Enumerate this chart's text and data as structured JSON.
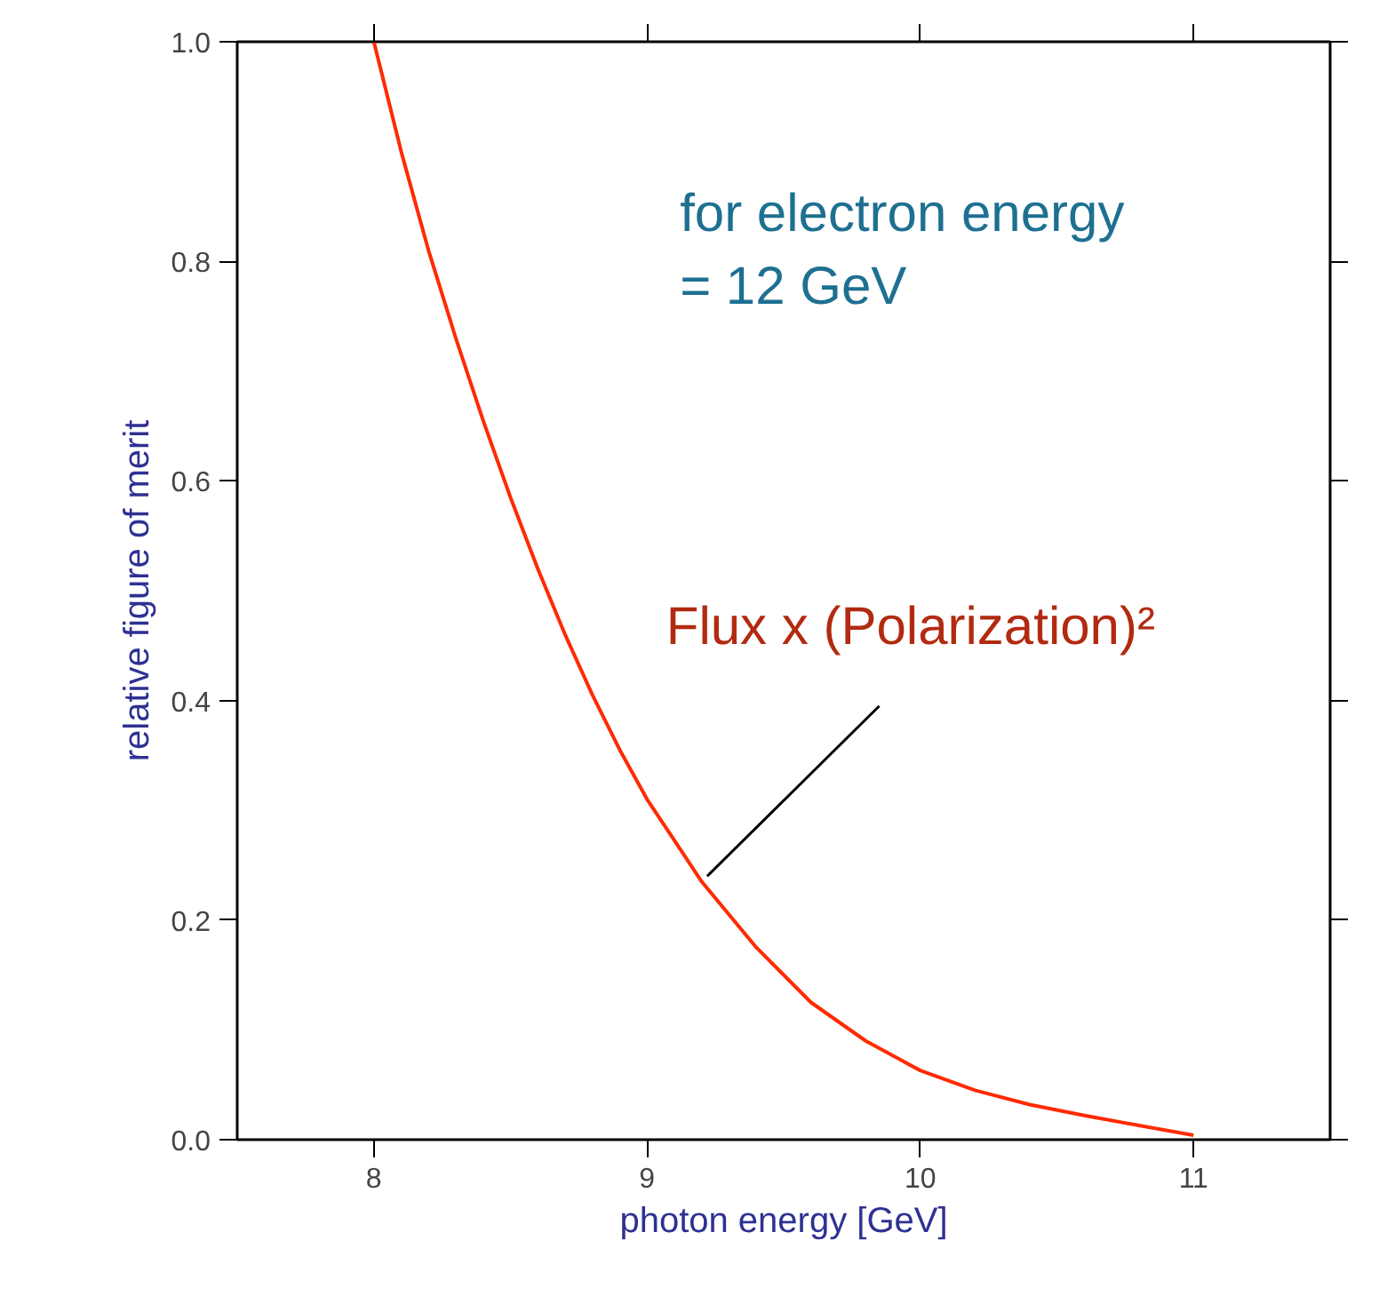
{
  "chart_data": {
    "type": "line",
    "xlabel": "photon energy [GeV]",
    "ylabel": "relative figure of merit",
    "x": [
      8.0,
      8.1,
      8.2,
      8.3,
      8.4,
      8.5,
      8.6,
      8.7,
      8.8,
      8.9,
      9.0,
      9.2,
      9.4,
      9.6,
      9.8,
      10.0,
      10.2,
      10.4,
      10.6,
      10.8,
      11.0
    ],
    "series": [
      {
        "color": "#ff2a00",
        "values": [
          1.0,
          0.9,
          0.81,
          0.73,
          0.655,
          0.585,
          0.52,
          0.46,
          0.405,
          0.355,
          0.31,
          0.235,
          0.175,
          0.125,
          0.09,
          0.063,
          0.045,
          0.032,
          0.022,
          0.013,
          0.004
        ]
      }
    ],
    "xlim": [
      7.5,
      11.5
    ],
    "xticks": [
      8,
      9,
      10,
      11
    ],
    "ylim": [
      0,
      1.0
    ],
    "yticks": [
      {
        "value": 0,
        "label": "0.0"
      },
      {
        "value": 0.2,
        "label": "0.2"
      },
      {
        "value": 0.4,
        "label": "0.4"
      },
      {
        "value": 0.6,
        "label": "0.6"
      },
      {
        "value": 0.8,
        "label": "0.8"
      },
      {
        "value": 1.0,
        "label": "1.0"
      }
    ],
    "grid": false,
    "line_style": "solid",
    "marker": "none",
    "annotations": [
      "for electron energy\n= 12 GeV",
      {
        "text": "Flux  x (Polarization)²",
        "x": 9.22,
        "y": 0.24
      }
    ]
  }
}
